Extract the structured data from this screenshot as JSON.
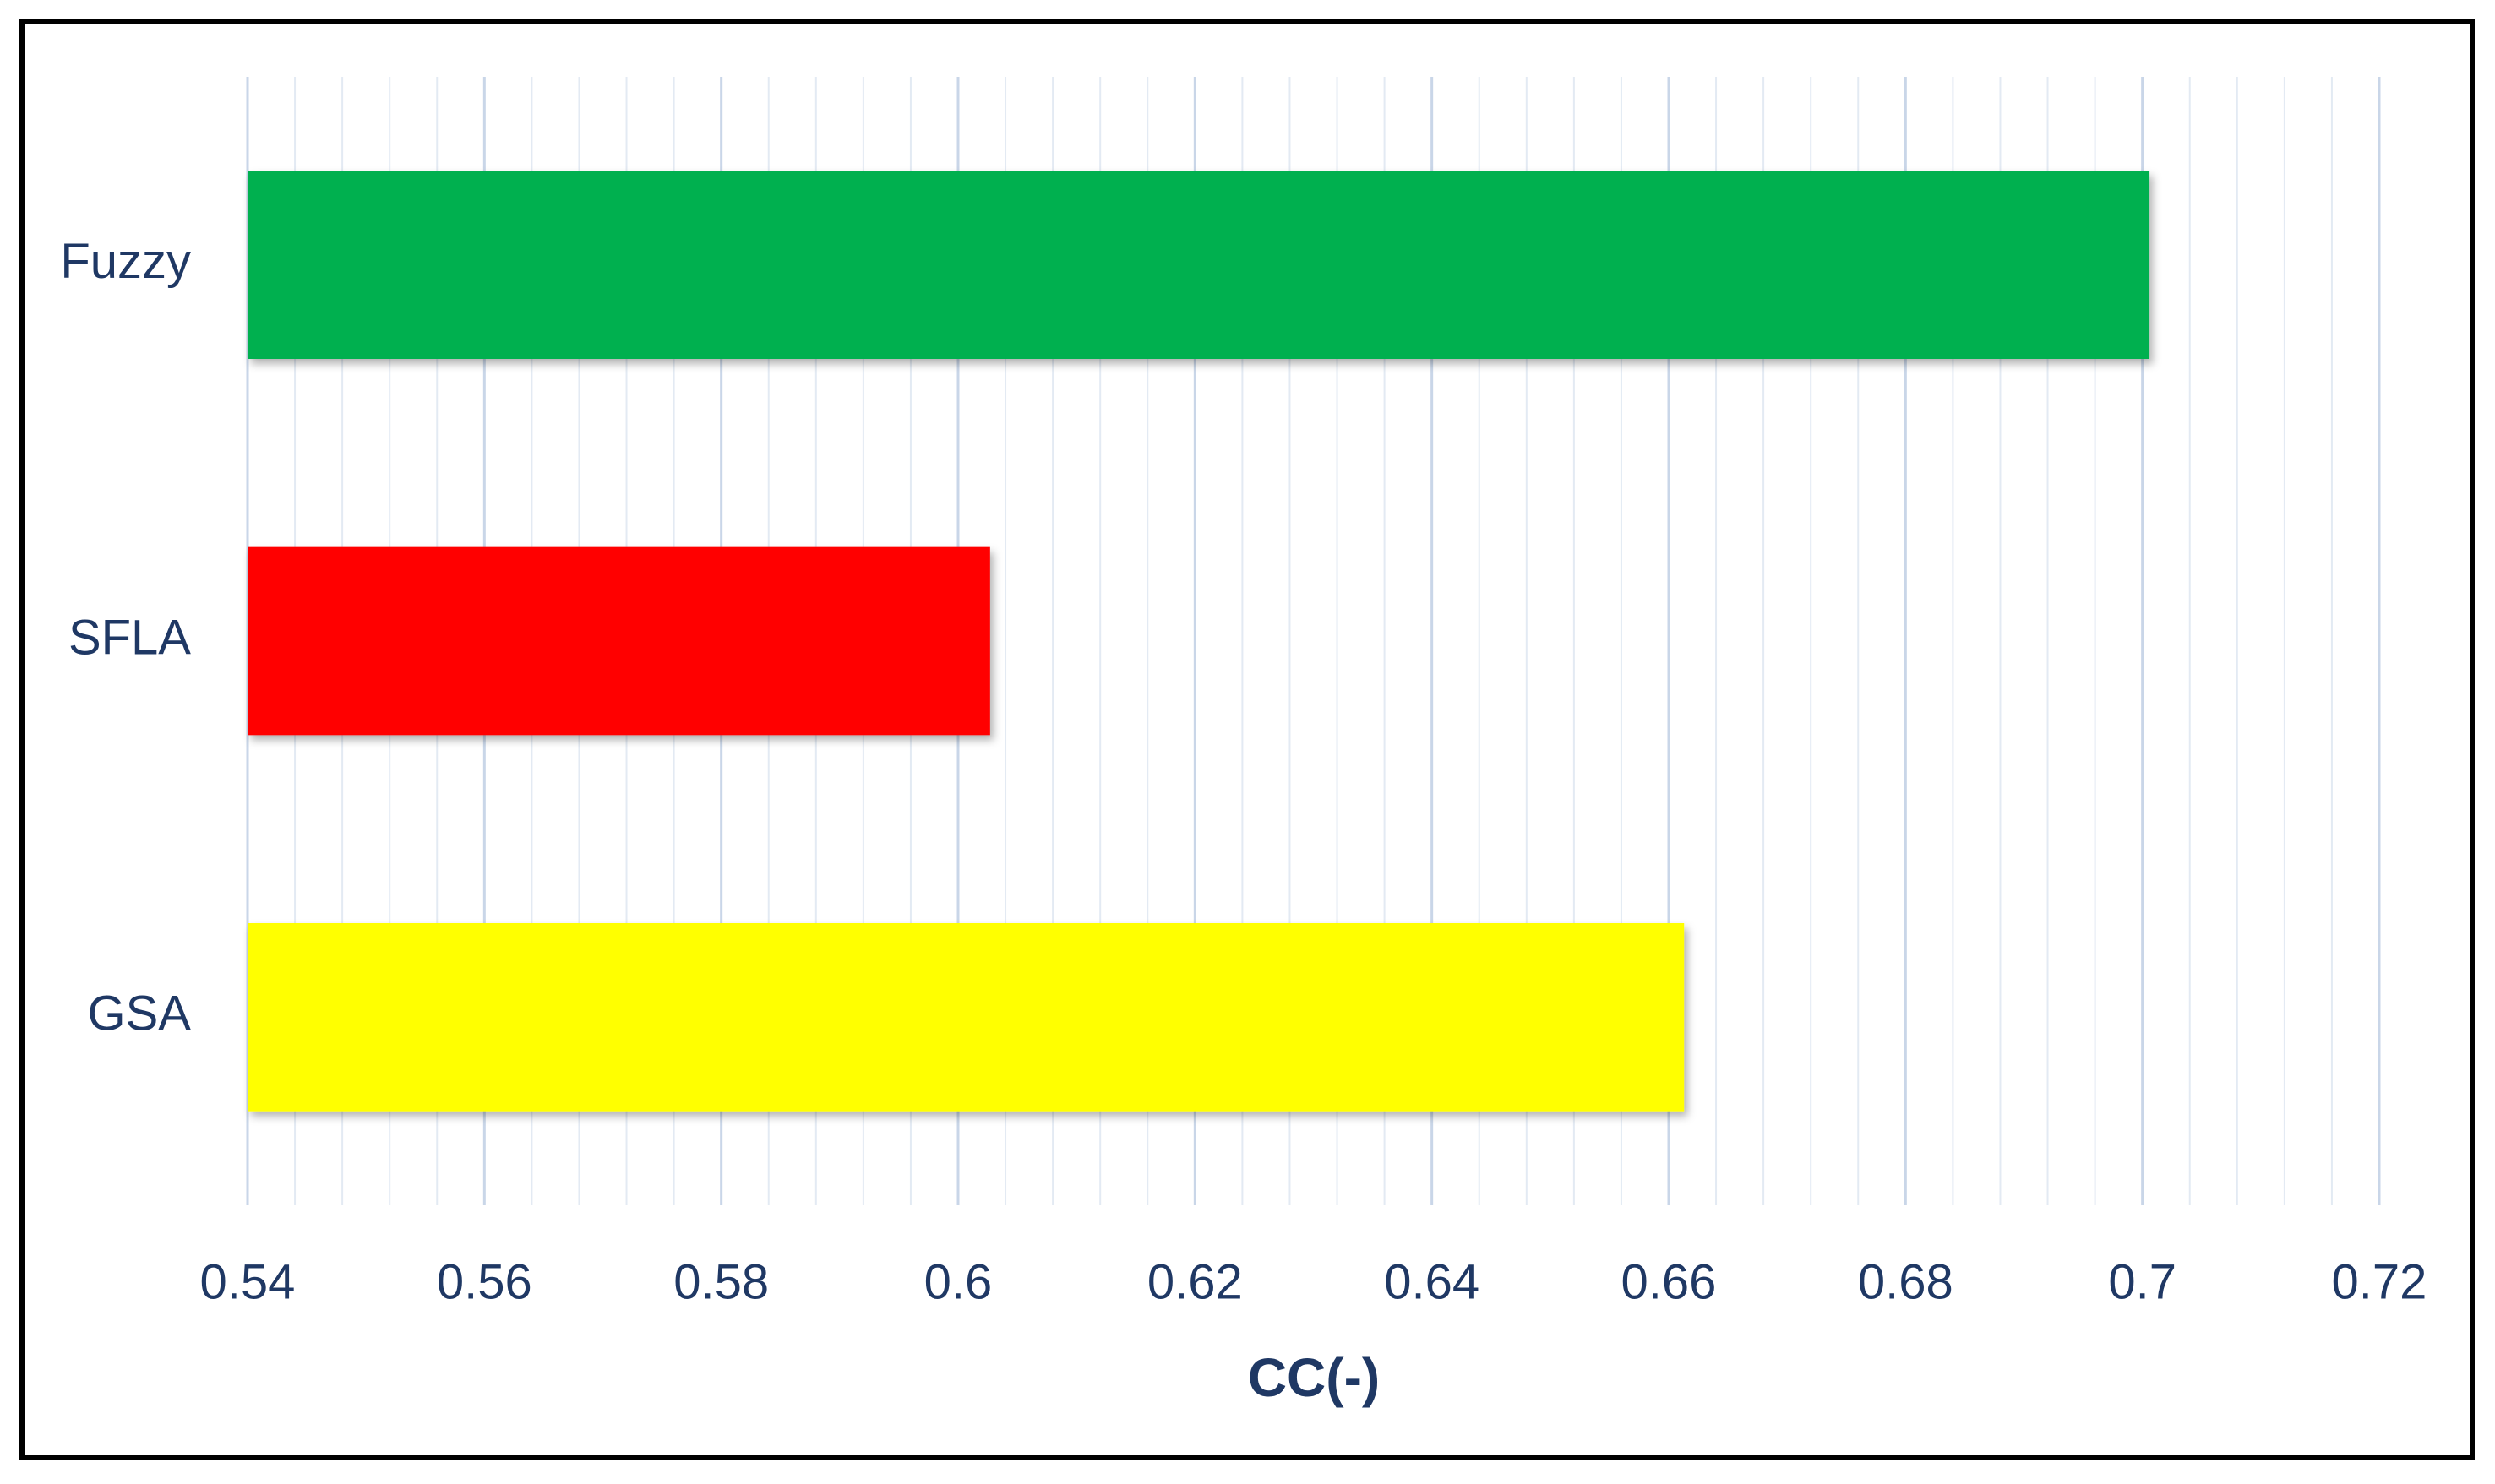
{
  "chart_data": {
    "type": "bar",
    "orientation": "horizontal",
    "x_label": "CC(-)",
    "categories": [
      "Fuzzy",
      "SFLA",
      "GSA"
    ],
    "values": [
      0.7006,
      0.6027,
      0.6613
    ],
    "colors": [
      "#00b050",
      "#ff0000",
      "#ffff00"
    ],
    "xlim": [
      0.54,
      0.72
    ],
    "xticks": [
      0.54,
      0.56,
      0.58,
      0.6,
      0.62,
      0.64,
      0.66,
      0.68,
      0.7,
      0.72
    ],
    "grid": true,
    "minor_grid": true
  }
}
